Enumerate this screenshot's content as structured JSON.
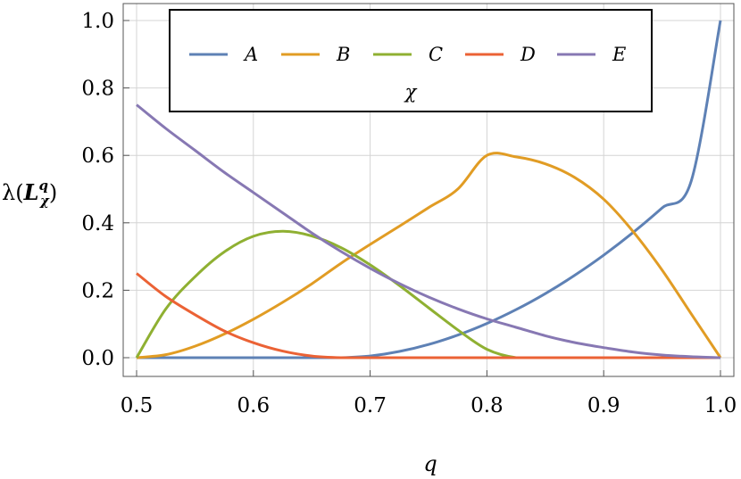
{
  "chart_data": {
    "type": "line",
    "xlabel": "q",
    "ylabel": {
      "prefix": "λ(",
      "symbol": "L",
      "sup": "q",
      "sub": "χ",
      "suffix": ")"
    },
    "xlim": [
      0.5,
      1.0
    ],
    "ylim": [
      0.0,
      1.0
    ],
    "x_ticks": [
      "0.5",
      "0.6",
      "0.7",
      "0.8",
      "0.9",
      "1.0"
    ],
    "y_ticks": [
      "0.0",
      "0.2",
      "0.4",
      "0.6",
      "0.8",
      "1.0"
    ],
    "grid": true,
    "legend": {
      "title": "χ",
      "position": "top-left",
      "orientation": "horizontal"
    },
    "x": [
      0.5,
      0.525,
      0.55,
      0.575,
      0.6,
      0.625,
      0.65,
      0.675,
      0.7,
      0.725,
      0.75,
      0.775,
      0.8,
      0.825,
      0.85,
      0.875,
      0.9,
      0.925,
      0.95,
      0.975,
      1.0
    ],
    "series": [
      {
        "name": "A",
        "color": "#5E81B5",
        "values": [
          0,
          0,
          0,
          0,
          0,
          0,
          0,
          0.0001,
          0.0051,
          0.0184,
          0.0391,
          0.067,
          0.1015,
          0.1425,
          0.1899,
          0.2438,
          0.3041,
          0.3709,
          0.4443,
          0.5244,
          1.0
        ]
      },
      {
        "name": "B",
        "color": "#E19C24",
        "values": [
          0,
          0.009,
          0.034,
          0.07,
          0.114,
          0.164,
          0.219,
          0.28,
          0.336,
          0.39,
          0.445,
          0.5,
          0.6,
          0.5955,
          0.575,
          0.535,
          0.47,
          0.375,
          0.26,
          0.13,
          0
        ]
      },
      {
        "name": "C",
        "color": "#8FB032",
        "values": [
          0,
          0.1444,
          0.24,
          0.3136,
          0.36,
          0.375,
          0.3611,
          0.3265,
          0.2755,
          0.2143,
          0.1481,
          0.0826,
          0.025,
          0,
          0,
          0,
          0,
          0,
          0,
          0,
          0
        ]
      },
      {
        "name": "D",
        "color": "#EB6235",
        "values": [
          0.25,
          0.1814,
          0.1276,
          0.0793,
          0.0444,
          0.0196,
          0.0049,
          0,
          0,
          0,
          0,
          0,
          0,
          0,
          0,
          0,
          0,
          0,
          0,
          0,
          0
        ]
      },
      {
        "name": "E",
        "color": "#8778B3",
        "values": [
          0.75,
          0.68,
          0.615,
          0.55,
          0.49,
          0.43,
          0.37,
          0.315,
          0.265,
          0.22,
          0.18,
          0.145,
          0.115,
          0.09,
          0.065,
          0.045,
          0.03,
          0.017,
          0.008,
          0.003,
          0
        ]
      }
    ]
  }
}
